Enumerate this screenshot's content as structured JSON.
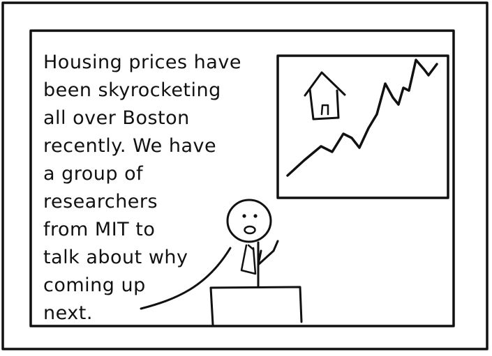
{
  "caption": {
    "lines": [
      "Housing prices have",
      "been skyrocketing",
      "all over Boston",
      "recently. We have",
      "a group of",
      "researchers",
      "from MIT to",
      "talk about why",
      "coming up",
      "next."
    ]
  },
  "colors": {
    "ink": "#111111",
    "paper": "#ffffff"
  },
  "icons": {
    "house": "house-icon",
    "trend": "rising-price-line"
  }
}
